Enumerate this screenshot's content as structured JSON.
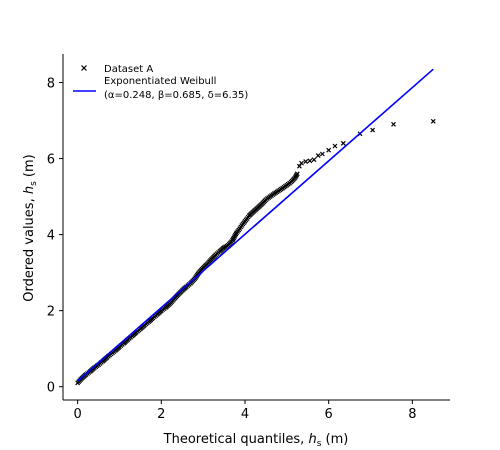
{
  "chart_data": {
    "type": "scatter",
    "xlabel": "Theoretical quantiles, h_s (m)",
    "xlabel_main": "Theoretical quantiles, ",
    "xlabel_var": "h",
    "xlabel_sub": "s",
    "xlabel_unit": " (m)",
    "ylabel_main": "Ordered values, ",
    "ylabel_var": "h",
    "ylabel_sub": "s",
    "ylabel_unit": " (m)",
    "xlim": [
      -0.35,
      8.9
    ],
    "ylim": [
      -0.35,
      8.75
    ],
    "xticks": [
      0,
      2,
      4,
      6,
      8
    ],
    "yticks": [
      0,
      2,
      4,
      6,
      8
    ],
    "grid": false,
    "legend_position": "top-left",
    "legend": {
      "scatter_label": "Dataset A",
      "line_label_1": "Exponentiated Weibull",
      "line_label_2": "(α=0.248, β=0.685, δ=6.35)"
    },
    "colors": {
      "points": "#000000",
      "line": "#0000ff"
    },
    "fit_line": {
      "name": "Exponentiated Weibull",
      "x": [
        0.0,
        8.5
      ],
      "y": [
        0.15,
        8.35
      ]
    },
    "series": [
      {
        "name": "Dataset A",
        "marker": "x",
        "x": [
          0.0,
          0.1,
          0.2,
          0.3,
          0.4,
          0.5,
          0.6,
          0.7,
          0.8,
          0.9,
          1.0,
          1.1,
          1.2,
          1.3,
          1.4,
          1.5,
          1.6,
          1.7,
          1.8,
          1.9,
          2.0,
          2.1,
          2.2,
          2.3,
          2.4,
          2.5,
          2.6,
          2.7,
          2.8,
          2.9,
          3.0,
          3.1,
          3.2,
          3.3,
          3.4,
          3.5,
          3.6,
          3.65,
          3.7,
          3.75,
          3.8,
          3.85,
          3.9,
          3.95,
          4.0,
          4.05,
          4.1,
          4.2,
          4.3,
          4.4,
          4.5,
          4.6,
          4.7,
          4.8,
          4.9,
          5.0,
          5.1,
          5.2,
          5.25,
          5.3,
          5.35,
          5.45,
          5.55,
          5.65,
          5.75,
          5.85,
          6.0,
          6.15,
          6.35,
          6.75,
          7.05,
          7.55,
          8.5
        ],
        "y": [
          0.1,
          0.22,
          0.32,
          0.4,
          0.5,
          0.58,
          0.67,
          0.77,
          0.86,
          0.95,
          1.05,
          1.14,
          1.24,
          1.33,
          1.43,
          1.52,
          1.62,
          1.71,
          1.81,
          1.9,
          2.0,
          2.08,
          2.18,
          2.3,
          2.42,
          2.53,
          2.63,
          2.72,
          2.84,
          3.0,
          3.12,
          3.23,
          3.35,
          3.47,
          3.56,
          3.66,
          3.72,
          3.78,
          3.85,
          3.95,
          4.05,
          4.12,
          4.2,
          4.28,
          4.35,
          4.42,
          4.5,
          4.6,
          4.7,
          4.8,
          4.92,
          5.0,
          5.08,
          5.15,
          5.22,
          5.3,
          5.38,
          5.5,
          5.6,
          5.8,
          5.88,
          5.92,
          5.94,
          5.97,
          6.08,
          6.12,
          6.22,
          6.33,
          6.4,
          6.65,
          6.75,
          6.9,
          6.98
        ]
      }
    ]
  }
}
